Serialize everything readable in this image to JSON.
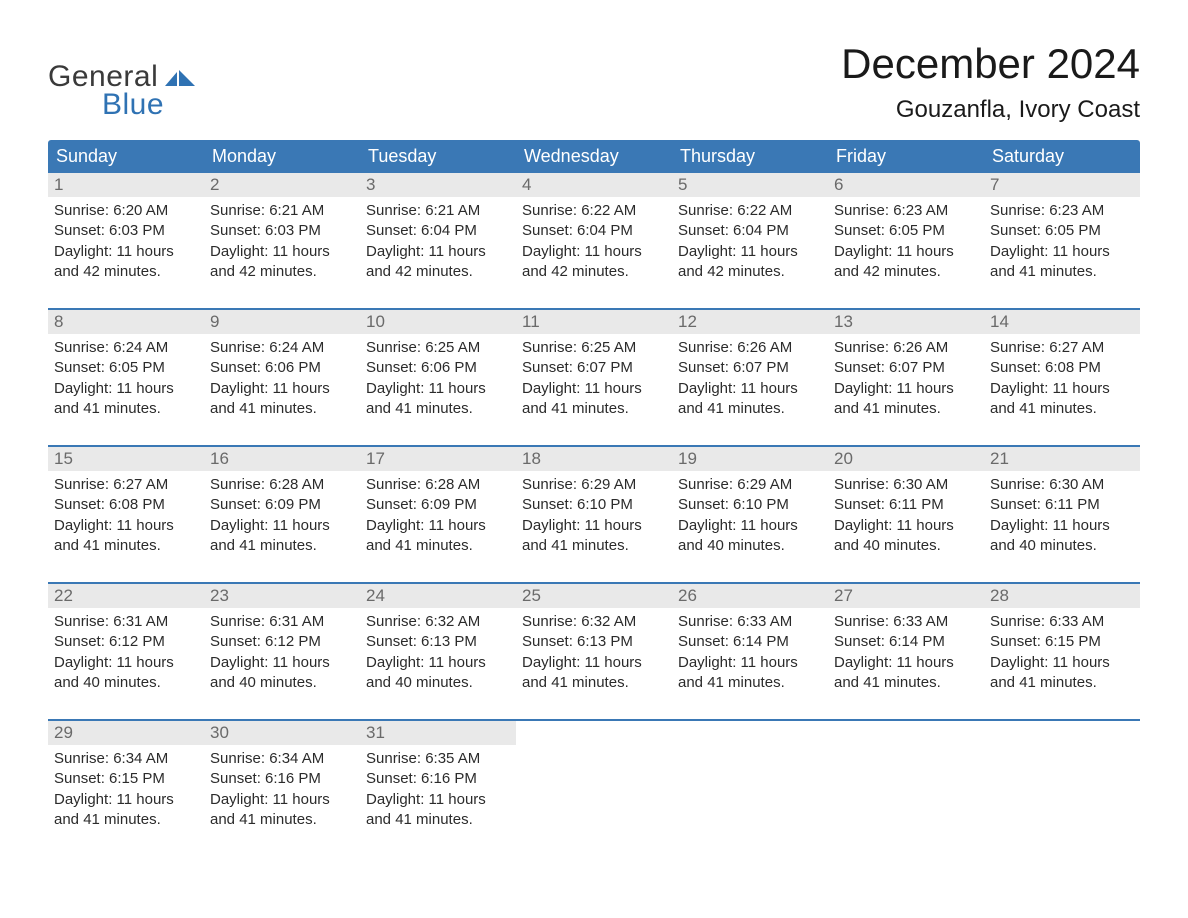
{
  "brand": {
    "line1": "General",
    "line2": "Blue",
    "text_color": "#3a3a3a",
    "accent_color": "#2f72b3"
  },
  "header": {
    "month_title": "December 2024",
    "location": "Gouzanfla, Ivory Coast"
  },
  "calendar": {
    "header_bg": "#3a78b5",
    "header_fg": "#ffffff",
    "week_border": "#3a78b5",
    "daynum_bg": "#e9e9e9",
    "daynum_fg": "#6a6a6a",
    "body_fg": "#2b2b2b",
    "days_of_week": [
      "Sunday",
      "Monday",
      "Tuesday",
      "Wednesday",
      "Thursday",
      "Friday",
      "Saturday"
    ],
    "weeks": [
      [
        {
          "num": "1",
          "sunrise": "Sunrise: 6:20 AM",
          "sunset": "Sunset: 6:03 PM",
          "daylight1": "Daylight: 11 hours",
          "daylight2": "and 42 minutes."
        },
        {
          "num": "2",
          "sunrise": "Sunrise: 6:21 AM",
          "sunset": "Sunset: 6:03 PM",
          "daylight1": "Daylight: 11 hours",
          "daylight2": "and 42 minutes."
        },
        {
          "num": "3",
          "sunrise": "Sunrise: 6:21 AM",
          "sunset": "Sunset: 6:04 PM",
          "daylight1": "Daylight: 11 hours",
          "daylight2": "and 42 minutes."
        },
        {
          "num": "4",
          "sunrise": "Sunrise: 6:22 AM",
          "sunset": "Sunset: 6:04 PM",
          "daylight1": "Daylight: 11 hours",
          "daylight2": "and 42 minutes."
        },
        {
          "num": "5",
          "sunrise": "Sunrise: 6:22 AM",
          "sunset": "Sunset: 6:04 PM",
          "daylight1": "Daylight: 11 hours",
          "daylight2": "and 42 minutes."
        },
        {
          "num": "6",
          "sunrise": "Sunrise: 6:23 AM",
          "sunset": "Sunset: 6:05 PM",
          "daylight1": "Daylight: 11 hours",
          "daylight2": "and 42 minutes."
        },
        {
          "num": "7",
          "sunrise": "Sunrise: 6:23 AM",
          "sunset": "Sunset: 6:05 PM",
          "daylight1": "Daylight: 11 hours",
          "daylight2": "and 41 minutes."
        }
      ],
      [
        {
          "num": "8",
          "sunrise": "Sunrise: 6:24 AM",
          "sunset": "Sunset: 6:05 PM",
          "daylight1": "Daylight: 11 hours",
          "daylight2": "and 41 minutes."
        },
        {
          "num": "9",
          "sunrise": "Sunrise: 6:24 AM",
          "sunset": "Sunset: 6:06 PM",
          "daylight1": "Daylight: 11 hours",
          "daylight2": "and 41 minutes."
        },
        {
          "num": "10",
          "sunrise": "Sunrise: 6:25 AM",
          "sunset": "Sunset: 6:06 PM",
          "daylight1": "Daylight: 11 hours",
          "daylight2": "and 41 minutes."
        },
        {
          "num": "11",
          "sunrise": "Sunrise: 6:25 AM",
          "sunset": "Sunset: 6:07 PM",
          "daylight1": "Daylight: 11 hours",
          "daylight2": "and 41 minutes."
        },
        {
          "num": "12",
          "sunrise": "Sunrise: 6:26 AM",
          "sunset": "Sunset: 6:07 PM",
          "daylight1": "Daylight: 11 hours",
          "daylight2": "and 41 minutes."
        },
        {
          "num": "13",
          "sunrise": "Sunrise: 6:26 AM",
          "sunset": "Sunset: 6:07 PM",
          "daylight1": "Daylight: 11 hours",
          "daylight2": "and 41 minutes."
        },
        {
          "num": "14",
          "sunrise": "Sunrise: 6:27 AM",
          "sunset": "Sunset: 6:08 PM",
          "daylight1": "Daylight: 11 hours",
          "daylight2": "and 41 minutes."
        }
      ],
      [
        {
          "num": "15",
          "sunrise": "Sunrise: 6:27 AM",
          "sunset": "Sunset: 6:08 PM",
          "daylight1": "Daylight: 11 hours",
          "daylight2": "and 41 minutes."
        },
        {
          "num": "16",
          "sunrise": "Sunrise: 6:28 AM",
          "sunset": "Sunset: 6:09 PM",
          "daylight1": "Daylight: 11 hours",
          "daylight2": "and 41 minutes."
        },
        {
          "num": "17",
          "sunrise": "Sunrise: 6:28 AM",
          "sunset": "Sunset: 6:09 PM",
          "daylight1": "Daylight: 11 hours",
          "daylight2": "and 41 minutes."
        },
        {
          "num": "18",
          "sunrise": "Sunrise: 6:29 AM",
          "sunset": "Sunset: 6:10 PM",
          "daylight1": "Daylight: 11 hours",
          "daylight2": "and 41 minutes."
        },
        {
          "num": "19",
          "sunrise": "Sunrise: 6:29 AM",
          "sunset": "Sunset: 6:10 PM",
          "daylight1": "Daylight: 11 hours",
          "daylight2": "and 40 minutes."
        },
        {
          "num": "20",
          "sunrise": "Sunrise: 6:30 AM",
          "sunset": "Sunset: 6:11 PM",
          "daylight1": "Daylight: 11 hours",
          "daylight2": "and 40 minutes."
        },
        {
          "num": "21",
          "sunrise": "Sunrise: 6:30 AM",
          "sunset": "Sunset: 6:11 PM",
          "daylight1": "Daylight: 11 hours",
          "daylight2": "and 40 minutes."
        }
      ],
      [
        {
          "num": "22",
          "sunrise": "Sunrise: 6:31 AM",
          "sunset": "Sunset: 6:12 PM",
          "daylight1": "Daylight: 11 hours",
          "daylight2": "and 40 minutes."
        },
        {
          "num": "23",
          "sunrise": "Sunrise: 6:31 AM",
          "sunset": "Sunset: 6:12 PM",
          "daylight1": "Daylight: 11 hours",
          "daylight2": "and 40 minutes."
        },
        {
          "num": "24",
          "sunrise": "Sunrise: 6:32 AM",
          "sunset": "Sunset: 6:13 PM",
          "daylight1": "Daylight: 11 hours",
          "daylight2": "and 40 minutes."
        },
        {
          "num": "25",
          "sunrise": "Sunrise: 6:32 AM",
          "sunset": "Sunset: 6:13 PM",
          "daylight1": "Daylight: 11 hours",
          "daylight2": "and 41 minutes."
        },
        {
          "num": "26",
          "sunrise": "Sunrise: 6:33 AM",
          "sunset": "Sunset: 6:14 PM",
          "daylight1": "Daylight: 11 hours",
          "daylight2": "and 41 minutes."
        },
        {
          "num": "27",
          "sunrise": "Sunrise: 6:33 AM",
          "sunset": "Sunset: 6:14 PM",
          "daylight1": "Daylight: 11 hours",
          "daylight2": "and 41 minutes."
        },
        {
          "num": "28",
          "sunrise": "Sunrise: 6:33 AM",
          "sunset": "Sunset: 6:15 PM",
          "daylight1": "Daylight: 11 hours",
          "daylight2": "and 41 minutes."
        }
      ],
      [
        {
          "num": "29",
          "sunrise": "Sunrise: 6:34 AM",
          "sunset": "Sunset: 6:15 PM",
          "daylight1": "Daylight: 11 hours",
          "daylight2": "and 41 minutes."
        },
        {
          "num": "30",
          "sunrise": "Sunrise: 6:34 AM",
          "sunset": "Sunset: 6:16 PM",
          "daylight1": "Daylight: 11 hours",
          "daylight2": "and 41 minutes."
        },
        {
          "num": "31",
          "sunrise": "Sunrise: 6:35 AM",
          "sunset": "Sunset: 6:16 PM",
          "daylight1": "Daylight: 11 hours",
          "daylight2": "and 41 minutes."
        },
        {
          "empty": true
        },
        {
          "empty": true
        },
        {
          "empty": true
        },
        {
          "empty": true
        }
      ]
    ]
  }
}
